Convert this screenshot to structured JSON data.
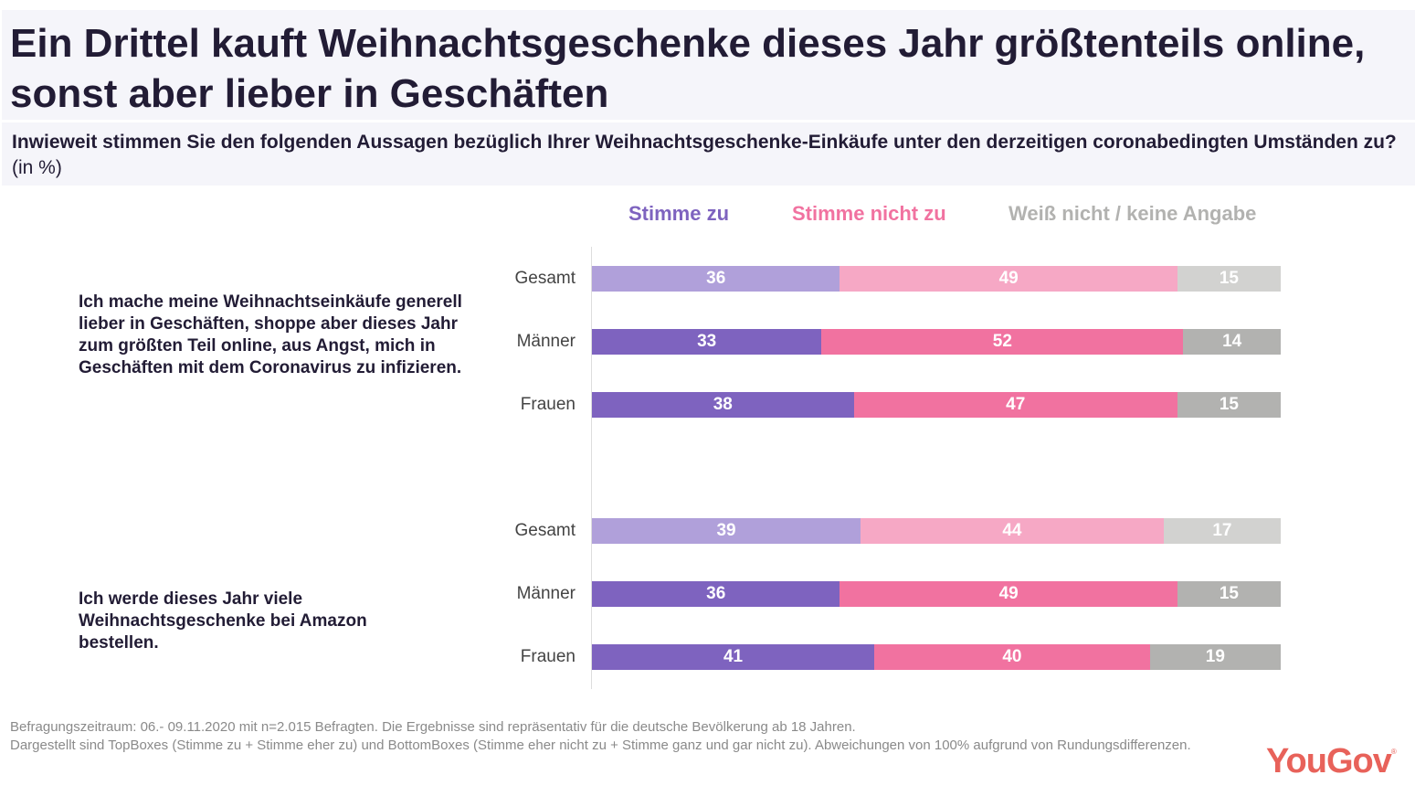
{
  "header": {
    "title": "Ein Drittel kauft Weihnachtsgeschenke dieses Jahr größtenteils online, sonst aber lieber in Geschäften",
    "question": "Inwieweit stimmen Sie den folgenden Aussagen bezüglich Ihrer Weihnachtsgeschenke-Einkäufe unter den derzeitigen coronabedingten Umständen zu?",
    "unit": "(in %)"
  },
  "colors": {
    "agree_total": "#b0a0da",
    "agree": "#7e63bf",
    "disagree_total": "#f6a8c5",
    "disagree": "#f172a0",
    "dontknow_total": "#d2d2d0",
    "dontknow": "#b2b2b0",
    "legend_agree": "#7e63bf",
    "legend_disagree": "#f172a0",
    "legend_dontknow": "#b2b2b0",
    "brand": "#e8625a"
  },
  "chart_data": {
    "type": "bar",
    "orientation": "horizontal",
    "stacked": true,
    "title": "Ein Drittel kauft Weihnachtsgeschenke dieses Jahr größtenteils online, sonst aber lieber in Geschäften",
    "subtitle": "Inwieweit stimmen Sie den folgenden Aussagen bezüglich Ihrer Weihnachtsgeschenke-Einkäufe unter den derzeitigen coronabedingten Umständen zu? (in %)",
    "legend": [
      "Stimme zu",
      "Stimme nicht zu",
      "Weiß nicht / keine Angabe"
    ],
    "legend_position": "top",
    "xlim": [
      0,
      100
    ],
    "groups": [
      {
        "statement": "Ich mache meine Weihnachtseinkäufe generell lieber in Geschäften, shoppe aber dieses Jahr zum größten Teil online, aus Angst, mich in Geschäften mit dem Coronavirus zu infizieren.",
        "categories": [
          "Gesamt",
          "Männer",
          "Frauen"
        ],
        "series": [
          {
            "name": "Stimme zu",
            "values": [
              36,
              33,
              38
            ]
          },
          {
            "name": "Stimme nicht zu",
            "values": [
              49,
              52,
              47
            ]
          },
          {
            "name": "Weiß nicht / keine Angabe",
            "values": [
              15,
              14,
              15
            ]
          }
        ]
      },
      {
        "statement": "Ich werde dieses Jahr viele Weihnachtsgeschenke bei Amazon bestellen.",
        "categories": [
          "Gesamt",
          "Männer",
          "Frauen"
        ],
        "series": [
          {
            "name": "Stimme zu",
            "values": [
              39,
              36,
              41
            ]
          },
          {
            "name": "Stimme nicht zu",
            "values": [
              44,
              49,
              40
            ]
          },
          {
            "name": "Weiß nicht / keine Angabe",
            "values": [
              17,
              15,
              19
            ]
          }
        ]
      }
    ]
  },
  "footer": {
    "line1": "Befragungszeitraum: 06.- 09.11.2020 mit n=2.015 Befragten. Die Ergebnisse sind repräsentativ für die deutsche Bevölkerung ab 18 Jahren.",
    "line2": "Dargestellt sind TopBoxes (Stimme zu + Stimme eher zu) und BottomBoxes (Stimme eher nicht zu + Stimme ganz und gar nicht zu). Abweichungen von 100% aufgrund von Rundungsdifferenzen.",
    "logo": "YouGov",
    "logo_mark": "®"
  }
}
